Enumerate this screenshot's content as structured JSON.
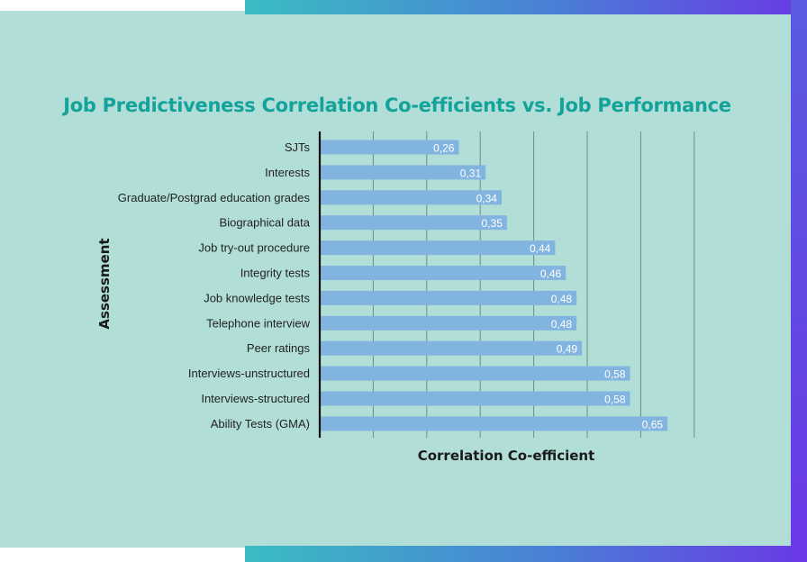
{
  "colors": {
    "background": "#b2ded8",
    "title": "#14a39a",
    "bar": "#82b4e0",
    "gradient_start": "#3bbcc2",
    "gradient_end": "#6a38e6"
  },
  "chart_data": {
    "type": "bar",
    "orientation": "horizontal",
    "title": "Job Predictiveness Correlation Co-efficients vs. Job Performance",
    "xlabel": "Correlation Co-efficient",
    "ylabel": "Assessment",
    "xlim": [
      0,
      0.7
    ],
    "grid": true,
    "categories": [
      "SJTs",
      "Interests",
      "Graduate/Postgrad education grades",
      "Biographical data",
      "Job try-out procedure",
      "Integrity tests",
      "Job knowledge tests",
      "Telephone interview",
      "Peer ratings",
      "Interviews-unstructured",
      "Interviews-structured",
      "Ability Tests (GMA)"
    ],
    "values": [
      0.26,
      0.31,
      0.34,
      0.35,
      0.44,
      0.46,
      0.48,
      0.48,
      0.49,
      0.58,
      0.58,
      0.65
    ],
    "value_labels": [
      "0,26",
      "0,31",
      "0,34",
      "0,35",
      "0,44",
      "0,46",
      "0,48",
      "0,48",
      "0,49",
      "0,58",
      "0,58",
      "0,65"
    ]
  }
}
